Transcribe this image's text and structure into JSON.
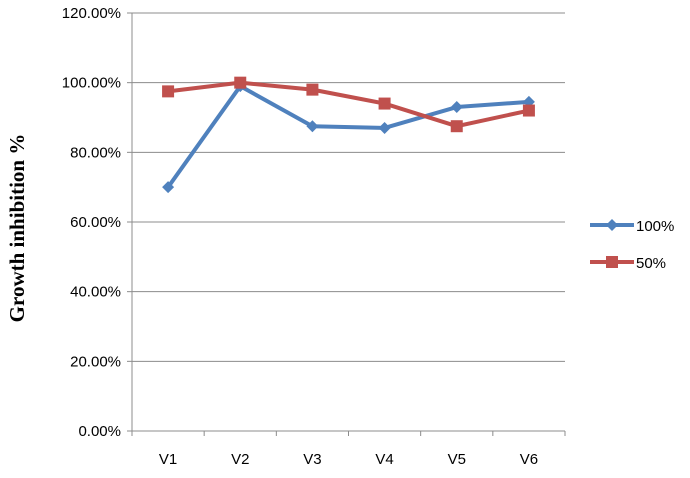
{
  "chart_data": {
    "type": "line",
    "categories": [
      "V1",
      "V2",
      "V3",
      "V4",
      "V5",
      "V6"
    ],
    "ylabel": "Growth inhibition %",
    "xlabel": "",
    "ylim": [
      0,
      1.2
    ],
    "yticks": [
      {
        "value": 0.0,
        "label": "0.00%"
      },
      {
        "value": 0.2,
        "label": "20.00%"
      },
      {
        "value": 0.4,
        "label": "40.00%"
      },
      {
        "value": 0.6,
        "label": "60.00%"
      },
      {
        "value": 0.8,
        "label": "80.00%"
      },
      {
        "value": 1.0,
        "label": "100.00%"
      },
      {
        "value": 1.2,
        "label": "120.00%"
      }
    ],
    "grid": true,
    "legend_position": "right",
    "series": [
      {
        "name": "100%",
        "color": "#4F81BD",
        "marker": "diamond",
        "values": [
          0.7,
          0.99,
          0.875,
          0.87,
          0.93,
          0.945
        ]
      },
      {
        "name": "50%",
        "color": "#C0504D",
        "marker": "square",
        "values": [
          0.975,
          1.0,
          0.98,
          0.94,
          0.875,
          0.92
        ]
      }
    ]
  }
}
